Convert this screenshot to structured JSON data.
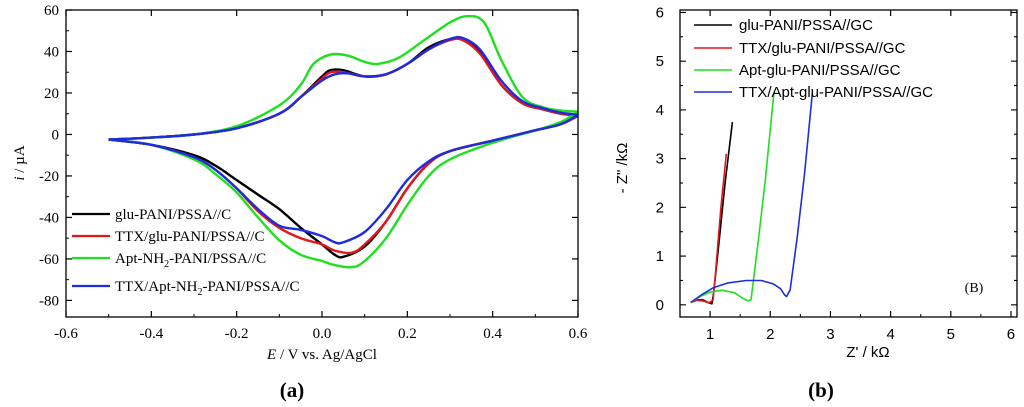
{
  "chart_data": [
    {
      "id": "a",
      "type": "line",
      "title": "",
      "panel_caption": "(a)",
      "xlabel": {
        "italic": "E",
        "rest": " / V vs. Ag/AgCl"
      },
      "ylabel": {
        "italic": "i",
        "rest": " / µA"
      },
      "xlim": [
        -0.6,
        0.6
      ],
      "ylim": [
        -88,
        60
      ],
      "xticks": [
        -0.6,
        -0.4,
        -0.2,
        0.0,
        0.2,
        0.4,
        0.6
      ],
      "xtick_labels": [
        "-0.6",
        "-0.4",
        "-0.2",
        "0.0",
        "0.2",
        "0.4",
        "0.6"
      ],
      "yticks": [
        -80,
        -60,
        -40,
        -20,
        0,
        20,
        40,
        60
      ],
      "ytick_labels": [
        "-80",
        "-60",
        "-40",
        "-20",
        "0",
        "20",
        "40",
        "60"
      ],
      "legend_position": "bottom-left",
      "series": [
        {
          "name": "glu-PANI/PSSA//C",
          "legend_label": {
            "main": "glu-PANI/PSSA//C",
            "sub": "",
            "tail": ""
          },
          "color": "#000000",
          "anodic": [
            [
              -0.5,
              -2.5
            ],
            [
              -0.4,
              -1.5
            ],
            [
              -0.3,
              0
            ],
            [
              -0.2,
              3
            ],
            [
              -0.1,
              10
            ],
            [
              -0.05,
              18
            ],
            [
              0.0,
              28
            ],
            [
              0.02,
              31
            ],
            [
              0.05,
              31
            ],
            [
              0.1,
              28
            ],
            [
              0.15,
              29
            ],
            [
              0.2,
              34
            ],
            [
              0.25,
              42
            ],
            [
              0.3,
              46
            ],
            [
              0.33,
              46
            ],
            [
              0.37,
              40
            ],
            [
              0.42,
              24
            ],
            [
              0.47,
              15
            ],
            [
              0.52,
              12
            ],
            [
              0.56,
              10
            ],
            [
              0.6,
              9
            ]
          ],
          "cathodic": [
            [
              0.6,
              9
            ],
            [
              0.56,
              5
            ],
            [
              0.5,
              2
            ],
            [
              0.4,
              -3
            ],
            [
              0.3,
              -8
            ],
            [
              0.25,
              -14
            ],
            [
              0.2,
              -26
            ],
            [
              0.15,
              -42
            ],
            [
              0.1,
              -54
            ],
            [
              0.05,
              -59
            ],
            [
              0.03,
              -58
            ],
            [
              0.0,
              -53
            ],
            [
              -0.05,
              -45
            ],
            [
              -0.1,
              -36
            ],
            [
              -0.15,
              -29
            ],
            [
              -0.2,
              -22
            ],
            [
              -0.25,
              -15
            ],
            [
              -0.3,
              -10
            ],
            [
              -0.4,
              -5
            ],
            [
              -0.5,
              -2.5
            ]
          ]
        },
        {
          "name": "TTX/glu-PANI/PSSA//C",
          "legend_label": {
            "main": "TTX/glu-PANI/PSSA//C",
            "sub": "",
            "tail": ""
          },
          "color": "#e8141b",
          "anodic": [
            [
              -0.5,
              -2.5
            ],
            [
              -0.4,
              -1.5
            ],
            [
              -0.3,
              0
            ],
            [
              -0.2,
              3
            ],
            [
              -0.1,
              10
            ],
            [
              -0.05,
              18
            ],
            [
              0.0,
              27
            ],
            [
              0.02,
              30
            ],
            [
              0.05,
              30
            ],
            [
              0.1,
              28
            ],
            [
              0.15,
              29
            ],
            [
              0.2,
              34
            ],
            [
              0.25,
              41
            ],
            [
              0.3,
              45.5
            ],
            [
              0.33,
              45.5
            ],
            [
              0.37,
              39
            ],
            [
              0.42,
              24
            ],
            [
              0.47,
              15
            ],
            [
              0.52,
              12
            ],
            [
              0.56,
              10
            ],
            [
              0.6,
              9
            ]
          ],
          "cathodic": [
            [
              0.6,
              9
            ],
            [
              0.56,
              5
            ],
            [
              0.5,
              2
            ],
            [
              0.4,
              -3
            ],
            [
              0.3,
              -8
            ],
            [
              0.25,
              -14
            ],
            [
              0.2,
              -26
            ],
            [
              0.15,
              -42
            ],
            [
              0.1,
              -53
            ],
            [
              0.07,
              -57
            ],
            [
              0.03,
              -56
            ],
            [
              0.0,
              -53
            ],
            [
              -0.05,
              -50
            ],
            [
              -0.1,
              -45
            ],
            [
              -0.15,
              -37
            ],
            [
              -0.2,
              -26
            ],
            [
              -0.25,
              -17
            ],
            [
              -0.3,
              -11
            ],
            [
              -0.4,
              -5
            ],
            [
              -0.5,
              -2.5
            ]
          ]
        },
        {
          "name": "Apt-NH2-PANI/PSSA//C",
          "legend_label": {
            "main": "Apt-NH",
            "sub": "2",
            "tail": "-PANI/PSSA//C"
          },
          "color": "#1ee01e",
          "anodic": [
            [
              -0.5,
              -2.5
            ],
            [
              -0.4,
              -1.5
            ],
            [
              -0.3,
              0
            ],
            [
              -0.2,
              4
            ],
            [
              -0.1,
              14
            ],
            [
              -0.05,
              24
            ],
            [
              -0.02,
              34
            ],
            [
              0.02,
              38.5
            ],
            [
              0.06,
              38
            ],
            [
              0.1,
              35
            ],
            [
              0.13,
              34
            ],
            [
              0.18,
              37
            ],
            [
              0.25,
              47
            ],
            [
              0.3,
              54
            ],
            [
              0.34,
              57
            ],
            [
              0.38,
              54
            ],
            [
              0.42,
              36
            ],
            [
              0.47,
              18
            ],
            [
              0.52,
              13
            ],
            [
              0.56,
              11.5
            ],
            [
              0.6,
              11
            ]
          ],
          "cathodic": [
            [
              0.6,
              11
            ],
            [
              0.56,
              6
            ],
            [
              0.5,
              2
            ],
            [
              0.4,
              -4
            ],
            [
              0.3,
              -12
            ],
            [
              0.25,
              -20
            ],
            [
              0.2,
              -34
            ],
            [
              0.15,
              -50
            ],
            [
              0.1,
              -61
            ],
            [
              0.07,
              -64
            ],
            [
              0.03,
              -63
            ],
            [
              0.0,
              -61
            ],
            [
              -0.05,
              -58
            ],
            [
              -0.1,
              -51
            ],
            [
              -0.15,
              -40
            ],
            [
              -0.2,
              -28
            ],
            [
              -0.25,
              -19
            ],
            [
              -0.3,
              -12
            ],
            [
              -0.4,
              -5
            ],
            [
              -0.5,
              -2.5
            ]
          ]
        },
        {
          "name": "TTX/Apt-NH2-PANI/PSSA//C",
          "legend_label": {
            "main": "TTX/Apt-NH",
            "sub": "2",
            "tail": "-PANI/PSSA//C"
          },
          "color": "#1c2de0",
          "anodic": [
            [
              -0.5,
              -2.5
            ],
            [
              -0.4,
              -1.5
            ],
            [
              -0.3,
              0
            ],
            [
              -0.2,
              3
            ],
            [
              -0.1,
              10
            ],
            [
              -0.05,
              18
            ],
            [
              0.0,
              26
            ],
            [
              0.03,
              29
            ],
            [
              0.06,
              29.5
            ],
            [
              0.1,
              28
            ],
            [
              0.15,
              29
            ],
            [
              0.2,
              34
            ],
            [
              0.25,
              41
            ],
            [
              0.3,
              46
            ],
            [
              0.33,
              46.5
            ],
            [
              0.37,
              41
            ],
            [
              0.42,
              26
            ],
            [
              0.47,
              16
            ],
            [
              0.52,
              12.5
            ],
            [
              0.56,
              10.5
            ],
            [
              0.6,
              9.5
            ]
          ],
          "cathodic": [
            [
              0.6,
              9.5
            ],
            [
              0.56,
              5
            ],
            [
              0.5,
              2
            ],
            [
              0.4,
              -3
            ],
            [
              0.3,
              -8
            ],
            [
              0.25,
              -13
            ],
            [
              0.2,
              -22
            ],
            [
              0.15,
              -36
            ],
            [
              0.1,
              -47
            ],
            [
              0.05,
              -52
            ],
            [
              0.03,
              -52
            ],
            [
              0.0,
              -49
            ],
            [
              -0.05,
              -46
            ],
            [
              -0.1,
              -44
            ],
            [
              -0.15,
              -36
            ],
            [
              -0.2,
              -26
            ],
            [
              -0.25,
              -17
            ],
            [
              -0.3,
              -11
            ],
            [
              -0.4,
              -5
            ],
            [
              -0.5,
              -2.5
            ]
          ]
        }
      ]
    },
    {
      "id": "b",
      "type": "line",
      "title": "",
      "panel_caption": "(b)",
      "inner_label": "(B)",
      "xlabel": "Z' / kΩ",
      "ylabel": "- Z\" /kΩ",
      "xlim": [
        0.5,
        6.1
      ],
      "ylim": [
        -0.25,
        6.05
      ],
      "xticks": [
        1,
        2,
        3,
        4,
        5,
        6
      ],
      "xtick_labels": [
        "1",
        "2",
        "3",
        "4",
        "5",
        "6"
      ],
      "yticks": [
        0,
        0.5,
        1,
        1.5,
        2,
        2.5,
        3,
        3.5,
        4,
        4.5,
        5,
        5.5,
        6
      ],
      "yticks_labeled": [
        0,
        1,
        2,
        3,
        4,
        5,
        6
      ],
      "ytick_labels": [
        "0",
        "1",
        "2",
        "3",
        "4",
        "5",
        "6"
      ],
      "legend_position": "top",
      "series": [
        {
          "name": "glu-PANI/PSSA//GC",
          "color": "#000000",
          "points": [
            [
              0.68,
              0.05
            ],
            [
              0.78,
              0.1
            ],
            [
              0.88,
              0.1
            ],
            [
              0.98,
              0.04
            ],
            [
              1.03,
              0.02
            ],
            [
              1.06,
              0.25
            ],
            [
              1.15,
              1.3
            ],
            [
              1.25,
              2.5
            ],
            [
              1.37,
              3.75
            ]
          ]
        },
        {
          "name": "TTX/glu-PANI/PSSA//GC",
          "color": "#e8141b",
          "points": [
            [
              0.68,
              0.05
            ],
            [
              0.78,
              0.09
            ],
            [
              0.88,
              0.08
            ],
            [
              0.98,
              0.04
            ],
            [
              1.05,
              0.1
            ],
            [
              1.1,
              0.8
            ],
            [
              1.18,
              2.0
            ],
            [
              1.27,
              3.1
            ]
          ]
        },
        {
          "name": "Apt-glu-PANI/PSSA//GC",
          "color": "#1ee01e",
          "points": [
            [
              0.68,
              0.05
            ],
            [
              0.85,
              0.18
            ],
            [
              1.0,
              0.26
            ],
            [
              1.2,
              0.3
            ],
            [
              1.4,
              0.25
            ],
            [
              1.55,
              0.13
            ],
            [
              1.63,
              0.08
            ],
            [
              1.68,
              0.1
            ],
            [
              1.8,
              1.3
            ],
            [
              1.92,
              2.6
            ],
            [
              2.06,
              4.35
            ]
          ]
        },
        {
          "name": "TTX/Apt-glu-PANI/PSSA//GC",
          "color": "#1c2de0",
          "points": [
            [
              0.68,
              0.05
            ],
            [
              0.85,
              0.2
            ],
            [
              1.05,
              0.35
            ],
            [
              1.3,
              0.45
            ],
            [
              1.6,
              0.5
            ],
            [
              1.85,
              0.5
            ],
            [
              2.05,
              0.43
            ],
            [
              2.17,
              0.33
            ],
            [
              2.24,
              0.2
            ],
            [
              2.27,
              0.17
            ],
            [
              2.33,
              0.3
            ],
            [
              2.45,
              1.4
            ],
            [
              2.57,
              2.7
            ],
            [
              2.7,
              4.35
            ]
          ]
        }
      ]
    }
  ]
}
